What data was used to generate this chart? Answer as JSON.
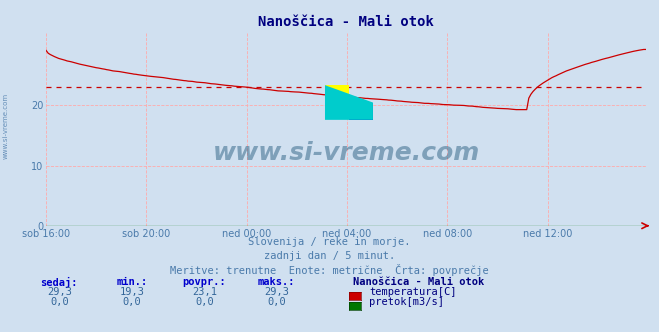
{
  "title": "Nanoščica - Mali otok",
  "title_color": "#000080",
  "bg_color": "#d0e0f0",
  "plot_bg_color": "#d0e0f0",
  "grid_color": "#ffaaaa",
  "grid_linestyle": "--",
  "xticklabels": [
    "sob 16:00",
    "sob 20:00",
    "ned 00:00",
    "ned 04:00",
    "ned 08:00",
    "ned 12:00"
  ],
  "ylim": [
    0,
    32
  ],
  "yticks": [
    0,
    10,
    20
  ],
  "avg_value": 23.1,
  "min_value": 19.3,
  "max_value": 29.3,
  "temp_color": "#cc0000",
  "flow_color": "#007700",
  "avg_line_color": "#cc0000",
  "avg_line_style": "--",
  "watermark_text": "www.si-vreme.com",
  "watermark_color": "#1a5276",
  "watermark_alpha": 0.45,
  "subtitle1": "Slovenija / reke in morje.",
  "subtitle2": "zadnji dan / 5 minut.",
  "subtitle3": "Meritve: trenutne  Enote: metrične  Črta: povprečje",
  "subtitle_color": "#4a7aaa",
  "legend_title": "Nanoščica - Mali otok",
  "legend_title_color": "#000080",
  "label_color": "#0000cc",
  "val_color": "#336699",
  "label_sedaj": "sedaj:",
  "label_min": "min.:",
  "label_povpr": "povpr.:",
  "label_maks": "maks.:",
  "val_sedaj": "29,3",
  "val_min": "19,3",
  "val_povpr": "23,1",
  "val_maks": "29,3",
  "val_flow_sedaj": "0,0",
  "val_flow_min": "0,0",
  "val_flow_povpr": "0,0",
  "val_flow_maks": "0,0",
  "label_temp": "temperatura[C]",
  "label_flow": "pretok[m3/s]",
  "left_label": "www.si-vreme.com",
  "left_label_color": "#4a7aaa",
  "logo_yellow": "#ffff00",
  "logo_cyan": "#00cccc",
  "logo_blue": "#0000cc"
}
